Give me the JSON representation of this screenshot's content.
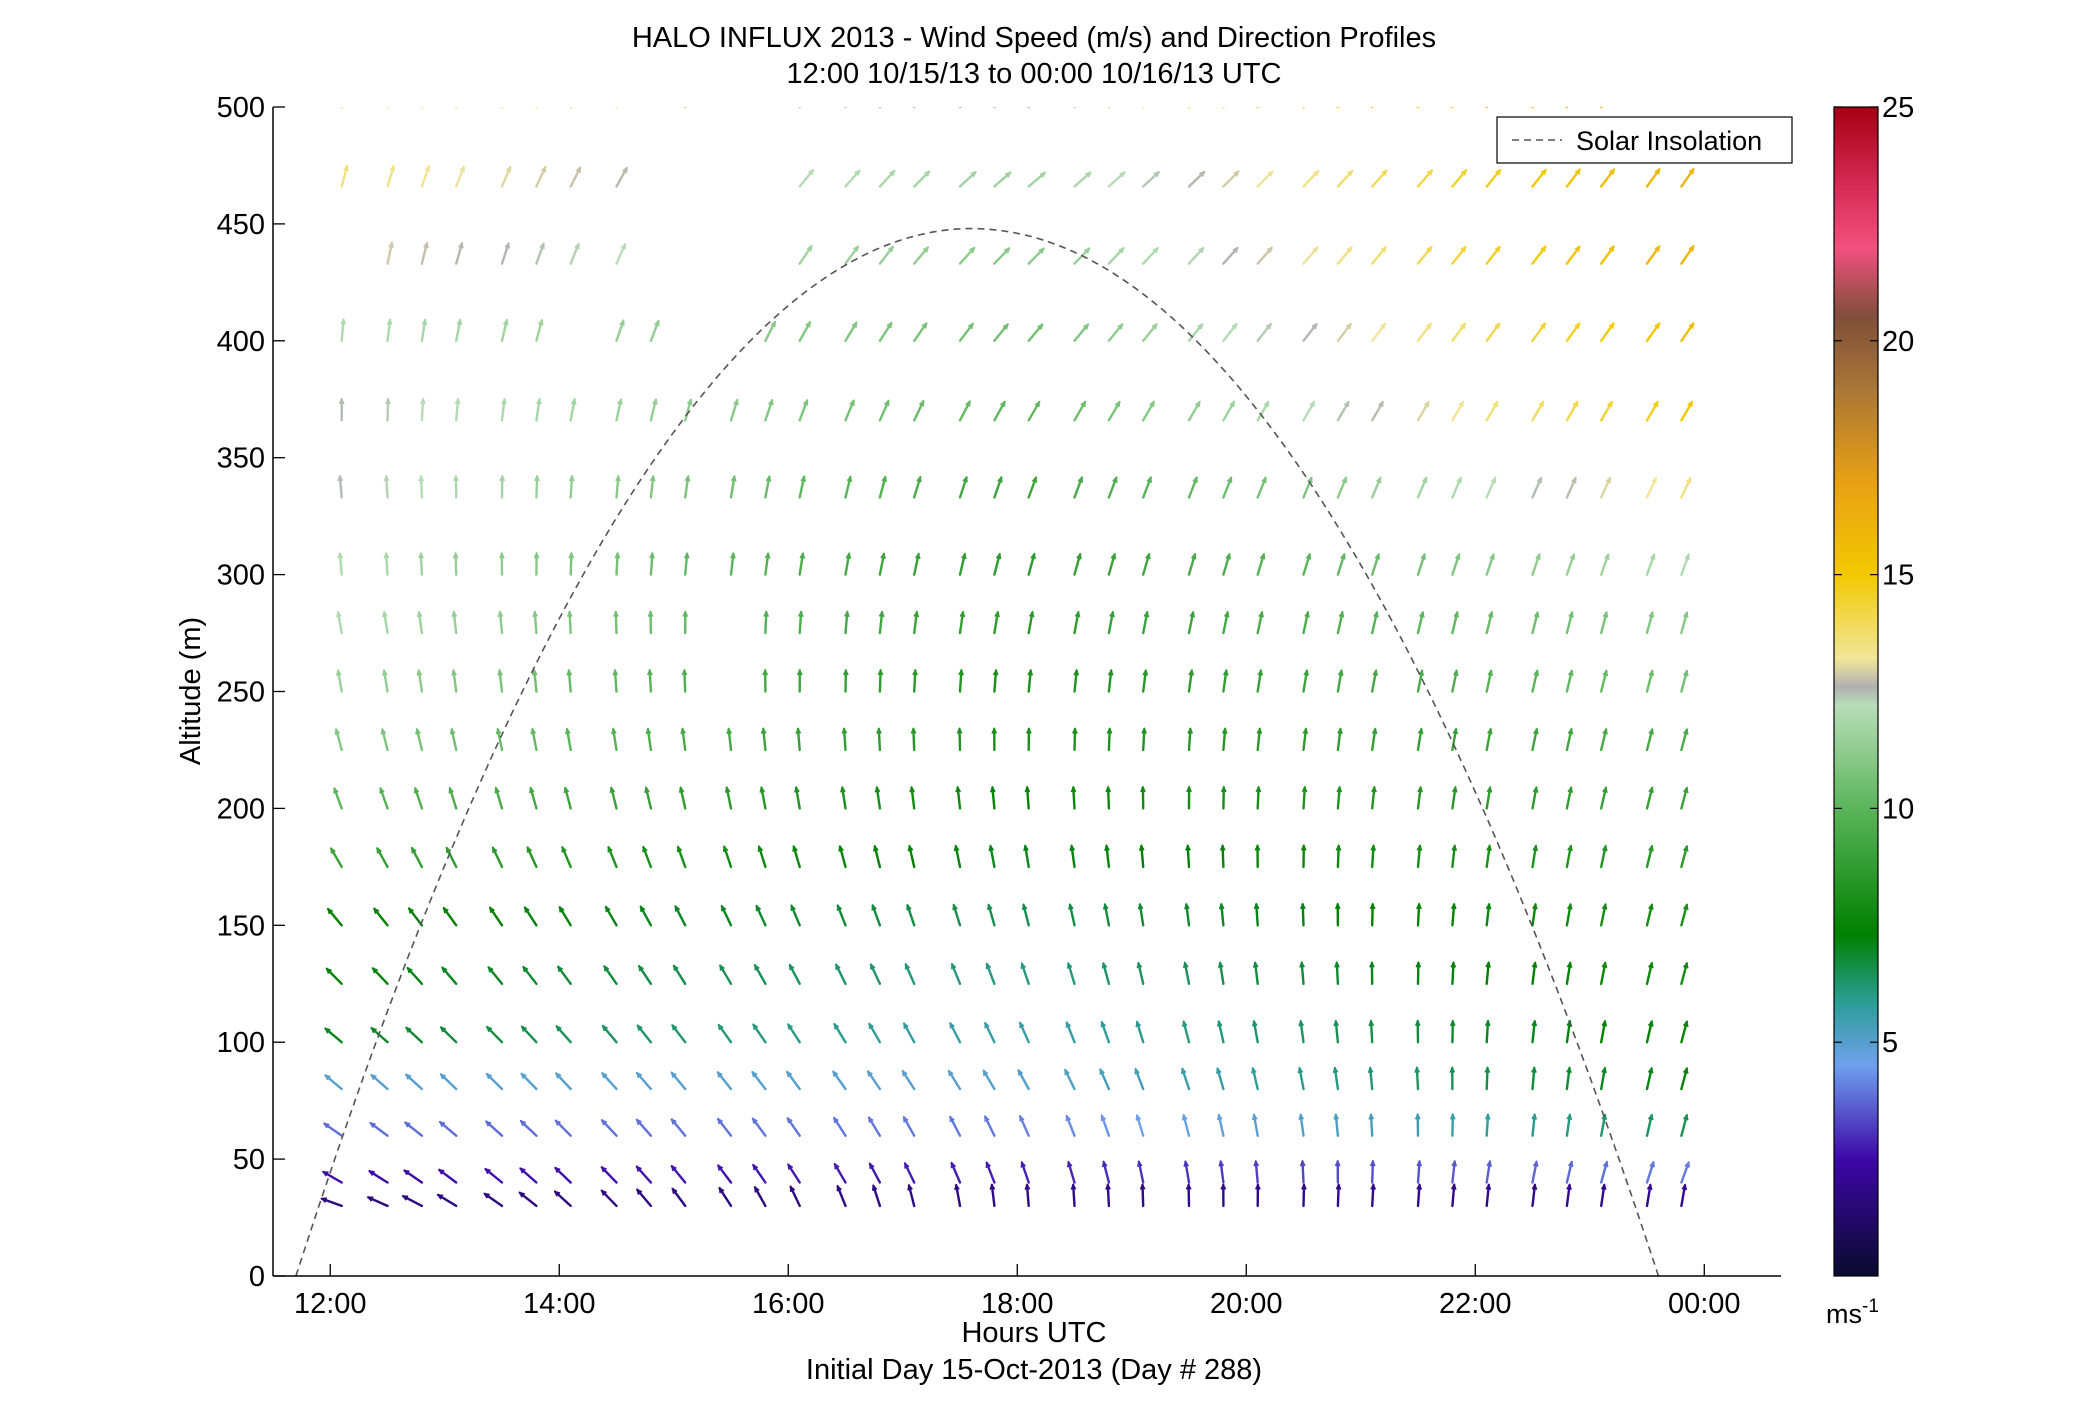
{
  "chart_data": {
    "type": "quiver",
    "title": "HALO INFLUX 2013 - Wind Speed (m/s) and Direction Profiles",
    "subtitle": "12:00 10/15/13 to 00:00 10/16/13  UTC",
    "xlabel": "Hours UTC",
    "xlabel2": "Initial Day 15-Oct-2013 (Day # 288)",
    "ylabel": "Altitude (m)",
    "xlim": [
      11.5,
      24.67
    ],
    "ylim": [
      0,
      500
    ],
    "x_ticks": [
      12,
      14,
      16,
      18,
      20,
      22,
      24
    ],
    "x_tick_labels": [
      "12:00",
      "14:00",
      "16:00",
      "18:00",
      "20:00",
      "22:00",
      "00:00"
    ],
    "y_ticks": [
      0,
      50,
      100,
      150,
      200,
      250,
      300,
      350,
      400,
      450,
      500
    ],
    "y_tick_labels": [
      "0",
      "50",
      "100",
      "150",
      "200",
      "250",
      "300",
      "350",
      "400",
      "450",
      "500"
    ],
    "legend": {
      "label": "Solar Insolation",
      "position": "top-right"
    },
    "colorbar": {
      "range": [
        0,
        25
      ],
      "ticks": [
        5,
        10,
        15,
        20,
        25
      ],
      "tick_labels": [
        "5",
        "10",
        "15",
        "20",
        "25"
      ],
      "unit_label": "ms",
      "unit_exponent": "-1"
    },
    "grid": false,
    "solar_insolation": {
      "start_hour": 11.7,
      "end_hour": 23.6,
      "peak_hour": 17.6,
      "peak_altitude": 448
    },
    "wind_heights_m": [
      30,
      40,
      60,
      80,
      100,
      125,
      150,
      175,
      200,
      225,
      250,
      275,
      300,
      333,
      366,
      400,
      433,
      466,
      500
    ],
    "wind_hours": [
      12.1,
      12.5,
      12.8,
      13.1,
      13.5,
      13.8,
      14.1,
      14.5,
      14.8,
      15.1,
      15.5,
      15.8,
      16.1,
      16.5,
      16.8,
      17.1,
      17.5,
      17.8,
      18.1,
      18.5,
      18.8,
      19.1,
      19.5,
      19.8,
      20.1,
      20.5,
      20.8,
      21.1,
      21.5,
      21.8,
      22.1,
      22.5,
      22.8,
      23.1,
      23.5,
      23.8
    ],
    "wind_rows": [
      {
        "altitude": 30,
        "start": 0,
        "end": 35,
        "speed_start": 1.6,
        "speed_mid": 1.8,
        "speed_end": 2.0,
        "dir_start": 290,
        "dir_mid": 355,
        "dir_end": 10
      },
      {
        "altitude": 40,
        "start": 0,
        "end": 35,
        "speed_start": 2.5,
        "speed_mid": 2.8,
        "speed_end": 4.0,
        "dir_start": 300,
        "dir_mid": 340,
        "dir_end": 20
      },
      {
        "altitude": 60,
        "start": 0,
        "end": 35,
        "speed_start": 3.8,
        "speed_mid": 4.0,
        "speed_end": 6.5,
        "dir_start": 305,
        "dir_mid": 335,
        "dir_end": 15
      },
      {
        "altitude": 80,
        "start": 0,
        "end": 35,
        "speed_start": 5.0,
        "speed_mid": 5.0,
        "speed_end": 7.2,
        "dir_start": 310,
        "dir_mid": 330,
        "dir_end": 15
      },
      {
        "altitude": 100,
        "start": 0,
        "end": 35,
        "speed_start": 7.0,
        "speed_mid": 5.5,
        "speed_end": 7.5,
        "dir_start": 310,
        "dir_mid": 335,
        "dir_end": 15
      },
      {
        "altitude": 125,
        "start": 0,
        "end": 35,
        "speed_start": 7.2,
        "speed_mid": 6.0,
        "speed_end": 7.8,
        "dir_start": 315,
        "dir_mid": 340,
        "dir_end": 15
      },
      {
        "altitude": 150,
        "start": 0,
        "end": 35,
        "speed_start": 7.5,
        "speed_mid": 6.5,
        "speed_end": 8.0,
        "dir_start": 320,
        "dir_mid": 345,
        "dir_end": 15
      },
      {
        "altitude": 175,
        "start": 0,
        "end": 35,
        "speed_start": 9.0,
        "speed_mid": 7.0,
        "speed_end": 8.5,
        "dir_start": 330,
        "dir_mid": 350,
        "dir_end": 15
      },
      {
        "altitude": 200,
        "start": 0,
        "end": 35,
        "speed_start": 10.0,
        "speed_mid": 7.5,
        "speed_end": 9.0,
        "dir_start": 340,
        "dir_mid": 355,
        "dir_end": 15
      },
      {
        "altitude": 225,
        "start": 0,
        "end": 35,
        "speed_start": 11.0,
        "speed_mid": 8.0,
        "speed_end": 9.5,
        "dir_start": 345,
        "dir_mid": 0,
        "dir_end": 15
      },
      {
        "altitude": 250,
        "start": 0,
        "end": 35,
        "speed_start": 11.5,
        "speed_mid": 8.0,
        "speed_end": 10.5,
        "dir_start": 350,
        "dir_mid": 5,
        "dir_end": 15
      },
      {
        "altitude": 275,
        "start": 0,
        "end": 35,
        "speed_start": 12.0,
        "speed_mid": 8.5,
        "speed_end": 11.0,
        "dir_start": 350,
        "dir_mid": 10,
        "dir_end": 15
      },
      {
        "altitude": 300,
        "start": 0,
        "end": 35,
        "speed_start": 12.0,
        "speed_mid": 8.5,
        "speed_end": 12.0,
        "dir_start": 355,
        "dir_mid": 15,
        "dir_end": 20
      },
      {
        "altitude": 333,
        "start": 0,
        "end": 35,
        "speed_start": 12.5,
        "speed_mid": 9.0,
        "speed_end": 13.5,
        "dir_start": 355,
        "dir_mid": 20,
        "dir_end": 25
      },
      {
        "altitude": 366,
        "start": 0,
        "end": 35,
        "speed_start": 12.5,
        "speed_mid": 10.0,
        "speed_end": 15.0,
        "dir_start": 0,
        "dir_mid": 30,
        "dir_end": 30
      },
      {
        "altitude": 400,
        "start": 0,
        "end": 35,
        "speed_start": 12.0,
        "speed_mid": 10.5,
        "speed_end": 15.5,
        "dir_start": 5,
        "dir_mid": 40,
        "dir_end": 35
      },
      {
        "altitude": 433,
        "start": 1,
        "end": 35,
        "speed_start": 13.0,
        "speed_mid": 11.0,
        "speed_end": 16.0,
        "dir_start": 10,
        "dir_mid": 45,
        "dir_end": 35
      },
      {
        "altitude": 466,
        "start": 0,
        "end": 35,
        "speed_start": 13.5,
        "speed_mid": 11.5,
        "speed_end": 16.0,
        "dir_start": 15,
        "dir_mid": 50,
        "dir_end": 35
      },
      {
        "altitude": 500,
        "start": 0,
        "end": 33,
        "speed_start": 13.5,
        "speed_mid": 12.5,
        "speed_end": 16.5,
        "dir_start": 20,
        "dir_mid": 50,
        "dir_end": 35
      }
    ],
    "missing_cells": [
      [
        433,
        0
      ],
      [
        500,
        10
      ],
      [
        500,
        11
      ],
      [
        500,
        8
      ],
      [
        466,
        8
      ],
      [
        466,
        9
      ],
      [
        466,
        10
      ],
      [
        466,
        11
      ],
      [
        433,
        8
      ],
      [
        433,
        9
      ],
      [
        433,
        10
      ],
      [
        433,
        11
      ],
      [
        400,
        6
      ],
      [
        400,
        9
      ],
      [
        400,
        10
      ],
      [
        250,
        10
      ],
      [
        275,
        10
      ]
    ],
    "colormap_stops": [
      {
        "speed": 0,
        "color": "#0a0a2e"
      },
      {
        "speed": 2.5,
        "color": "#3d08a8"
      },
      {
        "speed": 4.5,
        "color": "#6fa0ee"
      },
      {
        "speed": 5.8,
        "color": "#2e9e9a"
      },
      {
        "speed": 7.3,
        "color": "#008000"
      },
      {
        "speed": 10,
        "color": "#5bb55b"
      },
      {
        "speed": 12.2,
        "color": "#b8ddb8"
      },
      {
        "speed": 12.6,
        "color": "#b0b0b0"
      },
      {
        "speed": 13.2,
        "color": "#f1e69a"
      },
      {
        "speed": 15,
        "color": "#f2c900"
      },
      {
        "speed": 17,
        "color": "#e7a015"
      },
      {
        "speed": 19,
        "color": "#a87637"
      },
      {
        "speed": 20.5,
        "color": "#7f4f3a"
      },
      {
        "speed": 22,
        "color": "#f2507f"
      },
      {
        "speed": 23.5,
        "color": "#d1264f"
      },
      {
        "speed": 25,
        "color": "#a50012"
      }
    ]
  }
}
